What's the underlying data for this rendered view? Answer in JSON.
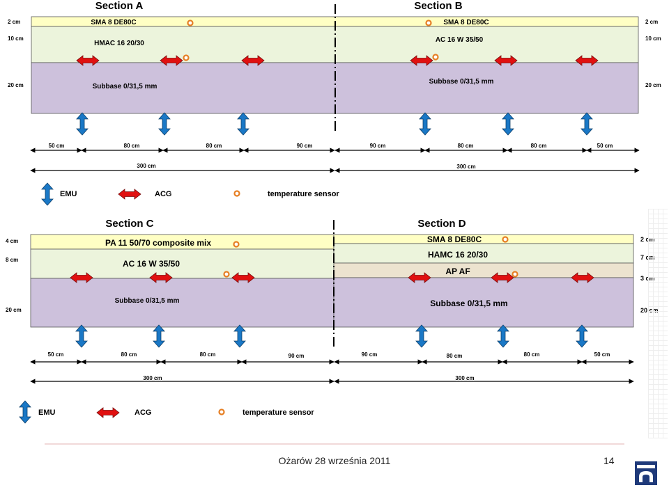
{
  "diagrams": [
    {
      "sections": [
        "Section A",
        "Section B"
      ],
      "layers": {
        "a": [
          "SMA 8 DE80C",
          "HMAC 16 20/30",
          "Subbase 0/31,5 mm"
        ],
        "b": [
          "SMA 8 DE80C",
          "AC 16 W 35/50",
          "Subbase 0/31,5 mm"
        ]
      },
      "depths_left": [
        "2 cm",
        "10 cm",
        "20 cm"
      ],
      "depths_right": [
        "2 cm",
        "10 cm",
        "20 cm"
      ],
      "spacings": [
        "50 cm",
        "80 cm",
        "80 cm",
        "90 cm",
        "90 cm",
        "80 cm",
        "80 cm",
        "50 cm"
      ],
      "totals": [
        "300 cm",
        "300 cm"
      ]
    },
    {
      "sections": [
        "Section C",
        "Section D"
      ],
      "layers": {
        "c": [
          "PA 11 50/70 composite mix",
          "AC 16 W 35/50",
          "Subbase 0/31,5 mm"
        ],
        "d": [
          "SMA 8 DE80C",
          "HAMC 16 20/30",
          "AP AF",
          "Subbase 0/31,5 mm"
        ]
      },
      "depths_left": [
        "4 cm",
        "8 cm",
        "20 cm"
      ],
      "depths_right": [
        "2 cm",
        "7 cm",
        "3 cm",
        "20 cm"
      ],
      "spacings": [
        "50 cm",
        "80 cm",
        "80 cm",
        "90 cm",
        "90 cm",
        "80 cm",
        "80 cm",
        "50 cm"
      ],
      "totals": [
        "300 cm",
        "300 cm"
      ]
    }
  ],
  "legend": {
    "emu": "EMU",
    "acg": "ACG",
    "sensor": "temperature sensor"
  },
  "colors": {
    "wearing": "#ffffc4",
    "binder": "#ecf4dc",
    "subbase": "#cdc1dc",
    "ap_af": "#ece3cf",
    "acg_arrow": "#e11010",
    "emu_arrow": "#1a78c6",
    "sensor": "#e67e22"
  },
  "footer": {
    "text": "Ożarów 28 września 2011",
    "page": "14"
  }
}
